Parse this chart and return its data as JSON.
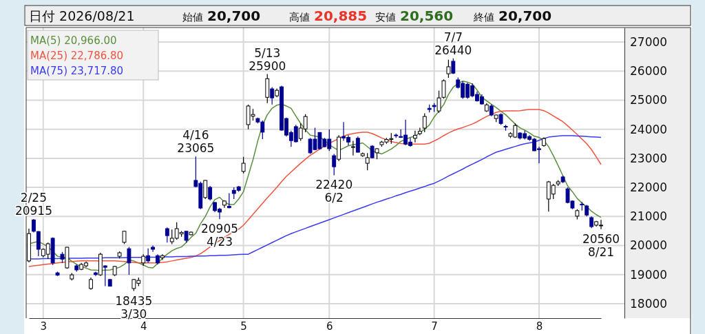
{
  "chart_data": {
    "type": "candlestick",
    "title": "日付 2026/08/21",
    "categories": [
      null,
      null,
      null,
      "3",
      null,
      null,
      null,
      null,
      null,
      null,
      null,
      null,
      null,
      null,
      null,
      null,
      null,
      null,
      null,
      null,
      null,
      null,
      null,
      null,
      "4",
      null,
      null,
      null,
      null,
      null,
      null,
      null,
      null,
      null,
      null,
      null,
      null,
      null,
      null,
      null,
      null,
      null,
      null,
      null,
      null,
      "5",
      null,
      null,
      null,
      null,
      null,
      null,
      null,
      null,
      null,
      null,
      null,
      null,
      null,
      null,
      null,
      null,
      null,
      "6",
      null,
      null,
      null,
      null,
      null,
      null,
      null,
      null,
      null,
      null,
      null,
      null,
      null,
      null,
      null,
      null,
      null,
      null,
      null,
      null,
      null,
      "7",
      null,
      null,
      null,
      null,
      null,
      null,
      null,
      null,
      null,
      null,
      null,
      null,
      null,
      null,
      null,
      null,
      null,
      null,
      null,
      null,
      null,
      "8",
      null,
      null,
      null,
      null,
      null,
      null,
      null,
      null,
      null,
      null,
      null,
      null,
      null
    ],
    "colors": [
      "#ffffff",
      "#000090",
      "#000090",
      "#ffffff",
      "#ffffff",
      "#000090",
      "#000090",
      "#000090",
      "#ffffff",
      "#ffffff",
      "#000090",
      "#ffffff",
      "#ffffff",
      "#ffffff",
      "#000090",
      "#ffffff",
      "#000090",
      "#000090",
      "#ffffff",
      "#ffffff",
      "#ffffff",
      "#000090",
      "#ffffff",
      "#ffffff",
      "#ffffff",
      "#000090",
      "#000090",
      "#000090",
      "#ffffff",
      "#000090",
      "#ffffff",
      "#ffffff",
      "#ffffff",
      "#000090",
      "#ffffff",
      "#000090",
      "#000090",
      "#ffffff",
      "#000090",
      "#000090",
      "#000090",
      "#ffffff",
      "#000090",
      "#000090",
      "#000090",
      "#ffffff",
      "#ffffff",
      "#ffffff",
      "#000090",
      "#000090",
      "#ffffff",
      "#000090",
      "#ffffff",
      "#000090",
      "#000090",
      "#000090",
      "#000090",
      "#ffffff",
      "#ffffff",
      "#000090",
      "#000090",
      "#000090",
      "#000090",
      "#000090",
      "#000090",
      "#ffffff",
      "#000090",
      "#000090",
      "#ffffff",
      "#000090",
      "#ffffff",
      "#ffffff",
      "#000090",
      "#ffffff",
      "#ffffff",
      "#ffffff",
      "#ffffff",
      "#000090",
      "#000090",
      "#000090",
      "#000090",
      "#ffffff",
      "#ffffff",
      "#ffffff",
      "#000090",
      "#000090",
      "#ffffff",
      "#ffffff",
      "#ffffff",
      "#000090",
      "#000090",
      "#000090",
      "#000090",
      "#000090",
      "#000090",
      "#000090",
      "#ffffff",
      "#000090",
      "#ffffff",
      "#000090",
      "#000090",
      "#ffffff",
      "#ffffff",
      "#000090",
      "#000090",
      "#000090",
      "#000090",
      "#000090",
      "#ffffff",
      "#ffffff",
      "#ffffff",
      "#ffffff",
      "#000090",
      "#000090",
      "#000090",
      "#ffffff",
      "#000090",
      "#000090",
      "#000090",
      "#ffffff",
      "#ffffff"
    ],
    "ohlc": [
      [
        19470,
        20580,
        19420,
        20410
      ],
      [
        20880,
        20915,
        20450,
        20490
      ],
      [
        20480,
        20500,
        19630,
        19870
      ],
      [
        19650,
        19900,
        19600,
        19870
      ],
      [
        19700,
        20100,
        19540,
        20060
      ],
      [
        20250,
        20280,
        19330,
        19400
      ],
      [
        19060,
        19100,
        18950,
        18980
      ],
      [
        19700,
        19780,
        19400,
        19530
      ],
      [
        19230,
        19950,
        19200,
        19940
      ],
      [
        18850,
        19050,
        18800,
        18990
      ],
      [
        19300,
        19350,
        19100,
        19160
      ],
      [
        19180,
        19400,
        19150,
        19350
      ],
      [
        19300,
        19450,
        19250,
        19400
      ],
      [
        18520,
        18900,
        18480,
        18830
      ],
      [
        19060,
        19100,
        18950,
        19000
      ],
      [
        18990,
        19750,
        18950,
        19700
      ],
      [
        19300,
        19320,
        18600,
        19250
      ],
      [
        18830,
        18850,
        18590,
        18600
      ],
      [
        18990,
        19300,
        18950,
        19280
      ],
      [
        19630,
        19800,
        19550,
        19750
      ],
      [
        20110,
        20500,
        20050,
        20490
      ],
      [
        19890,
        19950,
        18990,
        19400
      ],
      [
        18520,
        18850,
        18435,
        18830
      ],
      [
        18700,
        18900,
        18600,
        18800
      ],
      [
        19400,
        19700,
        19300,
        19630
      ],
      [
        19650,
        19900,
        19400,
        19470
      ],
      [
        19940,
        20000,
        19780,
        19870
      ],
      [
        19650,
        19700,
        19350,
        19400
      ],
      [
        19580,
        19700,
        19500,
        19650
      ],
      [
        20580,
        20620,
        20100,
        20340
      ],
      [
        20130,
        20550,
        20050,
        20250
      ],
      [
        20250,
        20800,
        20200,
        20580
      ],
      [
        20400,
        20500,
        20300,
        20450
      ],
      [
        20490,
        20500,
        20100,
        20180
      ],
      [
        20370,
        20480,
        20350,
        20460
      ],
      [
        22240,
        23065,
        22000,
        22030
      ],
      [
        22140,
        22200,
        21250,
        21290
      ],
      [
        21650,
        22250,
        21600,
        22240
      ],
      [
        22000,
        22050,
        21550,
        21600
      ],
      [
        21480,
        21500,
        21150,
        21200
      ],
      [
        21250,
        21300,
        20905,
        21150
      ],
      [
        21390,
        21550,
        21300,
        21530
      ],
      [
        21350,
        21800,
        21280,
        21300
      ],
      [
        21900,
        22000,
        21600,
        21790
      ],
      [
        22020,
        22050,
        21850,
        21900
      ],
      [
        22550,
        23050,
        22480,
        22830
      ],
      [
        24160,
        24850,
        24000,
        24800
      ],
      [
        24450,
        24700,
        24300,
        24510
      ],
      [
        24370,
        24400,
        24200,
        24250
      ],
      [
        24250,
        24300,
        23660,
        23900
      ],
      [
        25100,
        25900,
        24900,
        25740
      ],
      [
        25390,
        25450,
        24850,
        25080
      ],
      [
        25150,
        25400,
        25100,
        25340
      ],
      [
        25460,
        25500,
        23950,
        23970
      ],
      [
        24370,
        24400,
        23750,
        23800
      ],
      [
        23890,
        23950,
        23400,
        23610
      ],
      [
        24090,
        24150,
        23550,
        23570
      ],
      [
        23680,
        24200,
        23600,
        24040
      ],
      [
        24010,
        24520,
        23900,
        24440
      ],
      [
        23660,
        23700,
        23150,
        23190
      ],
      [
        23660,
        24050,
        23280,
        23300
      ],
      [
        23890,
        23900,
        23300,
        23330
      ],
      [
        23660,
        23700,
        23380,
        23400
      ],
      [
        23660,
        24000,
        23250,
        23330
      ],
      [
        23090,
        23150,
        22420,
        22710
      ],
      [
        22970,
        23800,
        22900,
        23730
      ],
      [
        23750,
        24250,
        23600,
        23700
      ],
      [
        23720,
        23800,
        23450,
        23560
      ],
      [
        23400,
        23600,
        23100,
        23400
      ],
      [
        23690,
        23750,
        23200,
        23210
      ],
      [
        23090,
        23200,
        23050,
        23160
      ],
      [
        22830,
        23180,
        22590,
        23020
      ],
      [
        23420,
        23450,
        23000,
        23020
      ],
      [
        23190,
        23350,
        22970,
        23330
      ],
      [
        23470,
        23600,
        23400,
        23560
      ],
      [
        23560,
        23700,
        23500,
        23650
      ],
      [
        23650,
        23870,
        23500,
        23680
      ],
      [
        23800,
        23850,
        23700,
        23790
      ],
      [
        23750,
        24000,
        23700,
        23720
      ],
      [
        23800,
        24330,
        23450,
        23490
      ],
      [
        23560,
        23700,
        23400,
        23440
      ],
      [
        23690,
        23950,
        23550,
        23790
      ],
      [
        23850,
        24050,
        23800,
        23930
      ],
      [
        24040,
        24550,
        23900,
        24440
      ],
      [
        24720,
        24850,
        24580,
        24680
      ],
      [
        24820,
        24900,
        24600,
        24780
      ],
      [
        24630,
        25330,
        24560,
        25080
      ],
      [
        25100,
        25720,
        25050,
        25670
      ],
      [
        25910,
        26390,
        25770,
        26150
      ],
      [
        26340,
        26440,
        25900,
        25930
      ],
      [
        25700,
        25780,
        25400,
        25440
      ],
      [
        25580,
        25650,
        25050,
        25100
      ],
      [
        25550,
        25600,
        25050,
        25100
      ],
      [
        25500,
        25580,
        25100,
        25150
      ],
      [
        25200,
        25300,
        24950,
        24980
      ],
      [
        25120,
        25200,
        24850,
        24870
      ],
      [
        24630,
        24900,
        24600,
        24840
      ],
      [
        24800,
        24850,
        24450,
        24490
      ],
      [
        24370,
        24500,
        24250,
        24490
      ],
      [
        24510,
        24550,
        24150,
        24200
      ],
      [
        24100,
        24150,
        23950,
        24090
      ],
      [
        23760,
        23900,
        23700,
        23850
      ],
      [
        23730,
        24200,
        23700,
        24130
      ],
      [
        23870,
        23900,
        23650,
        23700
      ],
      [
        23850,
        23950,
        23650,
        23700
      ],
      [
        23750,
        23800,
        23600,
        23650
      ],
      [
        23660,
        23700,
        23250,
        23260
      ],
      [
        23330,
        23400,
        22830,
        23300
      ],
      [
        23440,
        23720,
        23400,
        23680
      ],
      [
        21600,
        22220,
        21170,
        22190
      ],
      [
        21770,
        22120,
        21600,
        22070
      ],
      [
        22120,
        22250,
        22050,
        22190
      ],
      [
        22360,
        22400,
        22150,
        22190
      ],
      [
        21950,
        22000,
        21450,
        21480
      ],
      [
        21530,
        21550,
        21250,
        21290
      ],
      [
        21010,
        21250,
        20900,
        21200
      ],
      [
        21420,
        21500,
        21200,
        21400
      ],
      [
        21360,
        21400,
        21000,
        21050
      ],
      [
        20960,
        21000,
        20600,
        20650
      ],
      [
        20700,
        20850,
        20650,
        20820
      ],
      [
        20700,
        20885,
        20560,
        20700
      ]
    ],
    "series": [
      {
        "type": "line",
        "name": "MA(5) 20,966.00",
        "color": "#5a8f3c",
        "values": [
          20060,
          20100,
          20140,
          20050,
          19960,
          19800,
          19630,
          19600,
          19580,
          19460,
          19350,
          19280,
          19220,
          19160,
          19150,
          19140,
          19150,
          19160,
          19200,
          19250,
          19350,
          19500,
          19470,
          19400,
          19330,
          19250,
          19230,
          19380,
          19560,
          19700,
          19820,
          19900,
          19950,
          20100,
          20280,
          20420,
          20750,
          21000,
          21330,
          21580,
          21660,
          21500,
          21410,
          21410,
          21600,
          21850,
          22400,
          22950,
          23600,
          24150,
          24500,
          24720,
          24830,
          24870,
          24800,
          24720,
          24450,
          24200,
          23980,
          23800,
          23760,
          23740,
          23620,
          23470,
          23360,
          23270,
          23350,
          23430,
          23470,
          23490,
          23530,
          23400,
          23260,
          23200,
          23150,
          23230,
          23320,
          23440,
          23580,
          23650,
          23720,
          23760,
          23880,
          24000,
          24150,
          24420,
          24630,
          24850,
          25200,
          25450,
          25580,
          25660,
          25620,
          25560,
          25350,
          25100,
          24980,
          24860,
          24750,
          24620,
          24500,
          24340,
          24180,
          24050,
          23970,
          23870,
          23760,
          23720,
          23620,
          23400,
          23090,
          22750,
          22400,
          22050,
          21850,
          21620,
          21460,
          21330,
          21180,
          21060,
          20970
        ]
      },
      {
        "type": "line",
        "name": "MA(25) 22,786.80",
        "color": "#f0533f",
        "values": [
          19280,
          19300,
          19320,
          19340,
          19360,
          19380,
          19400,
          19420,
          19440,
          19450,
          19460,
          19470,
          19470,
          19470,
          19470,
          19470,
          19470,
          19470,
          19470,
          19460,
          19450,
          19440,
          19420,
          19400,
          19400,
          19400,
          19400,
          19410,
          19420,
          19440,
          19470,
          19500,
          19530,
          19560,
          19590,
          19640,
          19720,
          19830,
          19950,
          20060,
          20170,
          20280,
          20380,
          20470,
          20560,
          20700,
          20880,
          21070,
          21260,
          21450,
          21640,
          21820,
          22000,
          22200,
          22380,
          22530,
          22680,
          22830,
          22970,
          23100,
          23210,
          23320,
          23420,
          23520,
          23600,
          23680,
          23760,
          23820,
          23850,
          23880,
          23900,
          23900,
          23850,
          23780,
          23700,
          23640,
          23580,
          23540,
          23510,
          23500,
          23490,
          23490,
          23490,
          23490,
          23520,
          23600,
          23680,
          23780,
          23870,
          23950,
          24010,
          24060,
          24120,
          24180,
          24260,
          24350,
          24440,
          24510,
          24580,
          24620,
          24630,
          24630,
          24630,
          24640,
          24660,
          24680,
          24680,
          24680,
          24640,
          24560,
          24460,
          24360,
          24260,
          24120,
          23970,
          23820,
          23660,
          23500,
          23300,
          23050,
          22790
        ]
      },
      {
        "type": "line",
        "name": "MA(75) 23,717.80",
        "color": "#3a3af0",
        "values": [
          19540,
          19540,
          19540,
          19550,
          19550,
          19550,
          19550,
          19560,
          19560,
          19560,
          19560,
          19560,
          19570,
          19570,
          19570,
          19570,
          19580,
          19580,
          19580,
          19580,
          19580,
          19590,
          19590,
          19590,
          19590,
          19600,
          19600,
          19600,
          19610,
          19610,
          19610,
          19620,
          19620,
          19620,
          19630,
          19630,
          19640,
          19640,
          19650,
          19650,
          19660,
          19660,
          19670,
          19680,
          19690,
          19700,
          19700,
          19780,
          19860,
          19940,
          20020,
          20100,
          20180,
          20260,
          20340,
          20410,
          20470,
          20530,
          20590,
          20650,
          20710,
          20770,
          20830,
          20890,
          20950,
          21010,
          21070,
          21130,
          21190,
          21250,
          21310,
          21370,
          21430,
          21490,
          21540,
          21600,
          21650,
          21710,
          21760,
          21820,
          21870,
          21920,
          21980,
          22030,
          22090,
          22140,
          22220,
          22300,
          22390,
          22470,
          22550,
          22630,
          22720,
          22800,
          22880,
          22960,
          23050,
          23130,
          23210,
          23260,
          23310,
          23360,
          23410,
          23460,
          23500,
          23530,
          23560,
          23620,
          23680,
          23730,
          23750,
          23770,
          23780,
          23780,
          23780,
          23770,
          23760,
          23750,
          23740,
          23730,
          23720
        ]
      }
    ],
    "ylim": [
      17500,
      27500
    ],
    "yticks": [
      18000,
      19000,
      20000,
      21000,
      22000,
      23000,
      24000,
      25000,
      26000,
      27000
    ],
    "grid": true,
    "legend": "top left",
    "annotations": [
      "始値 20,700",
      "高値 20,885",
      "安値 20,560",
      "終値 20,700",
      {
        "text": "2/25\n20915",
        "y": 20915
      },
      {
        "text": "18435\n3/30",
        "y": 18435
      },
      {
        "text": "4/16\n23065",
        "y": 23065
      },
      {
        "text": "20905\n4/23",
        "y": 20905
      },
      {
        "text": "5/13\n25900",
        "y": 25900
      },
      {
        "text": "22420\n6/2",
        "y": 22420
      },
      {
        "text": "7/7\n26440",
        "y": 26440
      },
      {
        "text": "20560\n8/21",
        "y": 20560
      }
    ]
  }
}
